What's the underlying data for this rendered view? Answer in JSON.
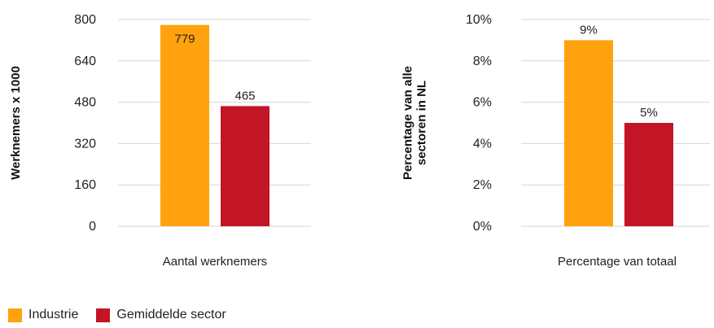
{
  "colors": {
    "industrie": "#ffa20e",
    "gemiddelde": "#c21525",
    "grid": "#d6d6d6"
  },
  "legend": [
    {
      "label": "Industrie",
      "color": "#ffa20e"
    },
    {
      "label": "Gemiddelde sector",
      "color": "#c21525"
    }
  ],
  "chart_data": [
    {
      "type": "bar",
      "categories": [
        "Aantal werknemers"
      ],
      "series": [
        {
          "name": "Industrie",
          "values": [
            779
          ],
          "labels": [
            "779"
          ]
        },
        {
          "name": "Gemiddelde sector",
          "values": [
            465
          ],
          "labels": [
            "465"
          ]
        }
      ],
      "ylabel": "Werknemers x 1000",
      "xlabel": "",
      "ylim": [
        0,
        800
      ],
      "yticks": [
        0,
        160,
        320,
        480,
        640,
        800
      ],
      "ytick_labels": [
        "0",
        "160",
        "320",
        "480",
        "640",
        "800"
      ],
      "grid": true,
      "legend_position": "bottom-left"
    },
    {
      "type": "bar",
      "categories": [
        "Percentage van totaal"
      ],
      "series": [
        {
          "name": "Industrie",
          "values": [
            9
          ],
          "labels": [
            "9%"
          ]
        },
        {
          "name": "Gemiddelde sector",
          "values": [
            5
          ],
          "labels": [
            "5%"
          ]
        }
      ],
      "ylabel": [
        "Percentage van alle",
        "sectoren in NL"
      ],
      "xlabel": "",
      "ylim": [
        0,
        10
      ],
      "yticks": [
        0,
        2,
        4,
        6,
        8,
        10
      ],
      "ytick_labels": [
        "0%",
        "2%",
        "4%",
        "6%",
        "8%",
        "10%"
      ],
      "grid": true,
      "legend_position": "bottom-left"
    }
  ]
}
